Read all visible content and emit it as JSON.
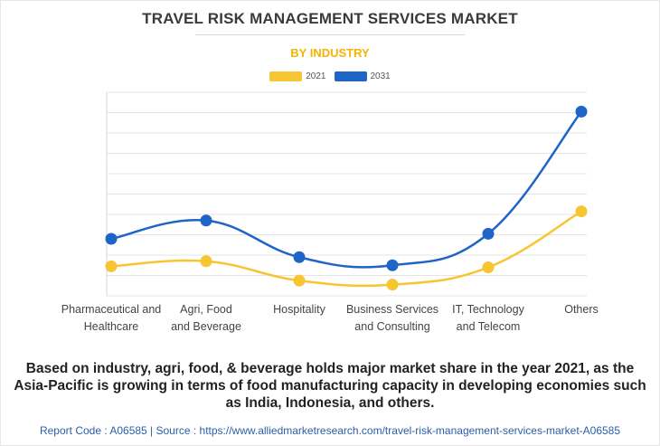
{
  "header": {
    "title": "TRAVEL RISK MANAGEMENT SERVICES MARKET",
    "subtitle": "BY INDUSTRY"
  },
  "legend": [
    {
      "label": "2021",
      "color": "#f7c531"
    },
    {
      "label": "2031",
      "color": "#1f64c7"
    }
  ],
  "chart_data": {
    "type": "line",
    "categories": [
      [
        "Pharmaceutical and",
        "Healthcare"
      ],
      [
        "Agri, Food",
        "and Beverage"
      ],
      [
        "Hospitality"
      ],
      [
        "Business Services",
        "and Consulting"
      ],
      [
        "IT, Technology",
        "and Telecom"
      ],
      [
        "Others"
      ]
    ],
    "series": [
      {
        "name": "2021",
        "color": "#f7c531",
        "values": [
          2.9,
          3.4,
          1.5,
          1.1,
          2.8,
          8.3
        ]
      },
      {
        "name": "2031",
        "color": "#1f64c7",
        "values": [
          5.6,
          7.4,
          3.8,
          3.0,
          6.1,
          18.1
        ]
      }
    ],
    "ylim": [
      0,
      20
    ],
    "grid": true,
    "legend_position": "top-center"
  },
  "caption": "Based on industry, agri, food, & beverage holds major market share in the year 2021, as the Asia-Pacific is growing in terms of food manufacturing capacity in developing economies such as India, Indonesia, and others.",
  "footer": "Report Code : A06585  |  Source : https://www.alliedmarketresearch.com/travel-risk-management-services-market-A06585"
}
